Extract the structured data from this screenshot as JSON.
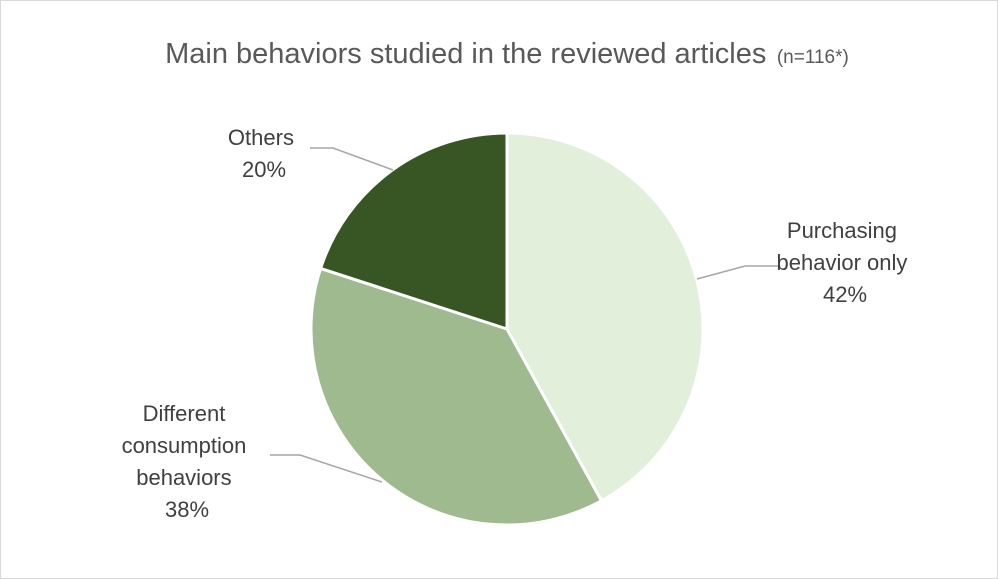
{
  "chart_data": {
    "type": "pie",
    "title": "Main behaviors studied in the reviewed articles",
    "subtitle": "(n=116*)",
    "slices": [
      {
        "label_lines": [
          "Purchasing",
          "behavior only"
        ],
        "percent_label": "42%",
        "value": 42,
        "color": "#e2efda"
      },
      {
        "label_lines": [
          "Different",
          "consumption",
          "behaviors"
        ],
        "percent_label": "38%",
        "value": 38,
        "color": "#9fba8e"
      },
      {
        "label_lines": [
          "Others"
        ],
        "percent_label": "20%",
        "value": 20,
        "color": "#375623"
      }
    ],
    "legend": "none"
  }
}
